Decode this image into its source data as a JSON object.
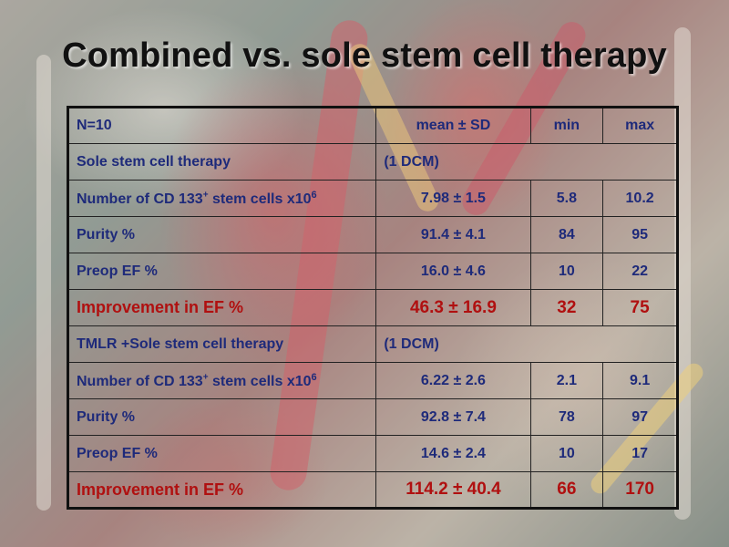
{
  "slide": {
    "title": "Combined vs. sole stem cell therapy"
  },
  "table": {
    "header": {
      "label": "N=10",
      "mean_col": "mean ± SD",
      "min_col": "min",
      "max_col": "max"
    },
    "groups": [
      {
        "title": "Sole stem cell therapy",
        "note": "(1 DCM)",
        "rows": [
          {
            "label_main": "Number of CD 133",
            "label_sup": "+",
            "label_tail": " stem cells x10",
            "label_exp": "6",
            "mean": "7.98 ± 1.5",
            "min": "5.8",
            "max": "10.2"
          },
          {
            "label": "Purity %",
            "mean": "91.4 ± 4.1",
            "min": "84",
            "max": "95"
          },
          {
            "label": "Preop EF %",
            "mean": "16.0 ± 4.6",
            "min": "10",
            "max": "22"
          },
          {
            "label": "Improvement in EF %",
            "mean": "46.3 ± 16.9",
            "min": "32",
            "max": "75"
          }
        ]
      },
      {
        "title": "TMLR +Sole stem cell therapy",
        "note": "(1 DCM)",
        "rows": [
          {
            "label_main": "Number of CD 133",
            "label_sup": "+",
            "label_tail": " stem cells x10",
            "label_exp": "6",
            "mean": "6.22 ± 2.6",
            "min": "2.1",
            "max": "9.1"
          },
          {
            "label": "Purity %",
            "mean": "92.8 ± 7.4",
            "min": "78",
            "max": "97"
          },
          {
            "label": "Preop EF %",
            "mean": "14.6 ± 2.4",
            "min": "10",
            "max": "17"
          },
          {
            "label": "Improvement in EF %",
            "mean": "114.2 ± 40.4",
            "min": "66",
            "max": "170"
          }
        ]
      }
    ]
  },
  "colors": {
    "text_blue": "#1e2a7a",
    "highlight_red": "#b01010",
    "section_black": "#111111"
  }
}
